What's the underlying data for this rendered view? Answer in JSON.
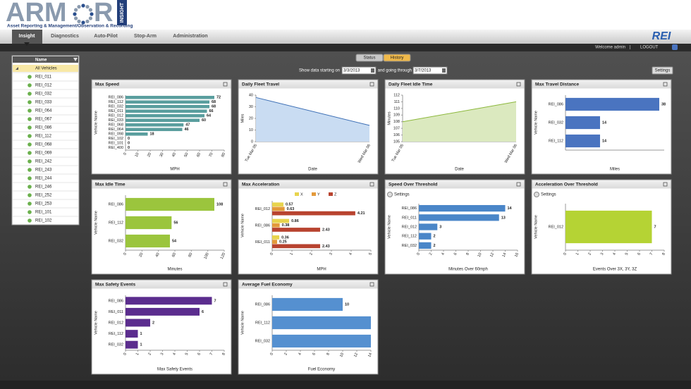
{
  "header": {
    "logo_left": "ARM",
    "logo_right": "R",
    "logo_tag": "INSIGHT",
    "tagline": "Asset Reporting & Management/Observation & Recording"
  },
  "nav": {
    "tabs": [
      "Insight",
      "Diagnostics",
      "Auto-Pilot",
      "Stop-Arm",
      "Administration"
    ],
    "brand": "REI"
  },
  "user_bar": {
    "welcome": "Welcome admin",
    "separator": "|",
    "logout": "LOGOUT"
  },
  "sidebar": {
    "header": "Name",
    "items": [
      "All Vehicles",
      "REI_011",
      "REI_012",
      "REI_032",
      "REI_033",
      "REI_064",
      "REI_067",
      "REI_086",
      "REI_112",
      "REI_068",
      "REI_069",
      "REI_242",
      "REI_243",
      "REI_244",
      "REI_246",
      "REI_252",
      "REI_253",
      "REI_101",
      "REI_102"
    ]
  },
  "view_tabs": [
    "Status",
    "History"
  ],
  "filter": {
    "start_label": "Show data starting on",
    "start": "3/3/2013",
    "end_label": "and going through",
    "end": "3/7/2013",
    "settings": "Settings"
  },
  "chart_data": [
    {
      "type": "barh",
      "title": "Max Speed",
      "categories": [
        "REI_086",
        "REI_112",
        "REI_032",
        "REI_011",
        "REI_012",
        "REI_033",
        "REI_068",
        "REI_064",
        "REI_098",
        "REI_102",
        "REI_101",
        "REI_400"
      ],
      "values": [
        72,
        68,
        68,
        66,
        64,
        60,
        47,
        46,
        18,
        0,
        0,
        0
      ],
      "color": "#5a9e9e",
      "xlim": [
        0,
        80
      ],
      "xticks": [
        0,
        10,
        20,
        30,
        40,
        50,
        60,
        70,
        80
      ],
      "x_label": "MPH",
      "y_label": "Vehicle Name"
    },
    {
      "type": "area",
      "title": "Daily Fleet Travel",
      "x": [
        "Tue Mar 05",
        "Wed Mar 06"
      ],
      "values": [
        38,
        14
      ],
      "color": "#3d6fb5",
      "fill_color": "#c9dcf2",
      "ylim": [
        0,
        40
      ],
      "yticks": [
        0,
        10,
        20,
        30,
        40
      ],
      "x_label": "Date",
      "y_label": "Miles"
    },
    {
      "type": "area",
      "title": "Daily Fleet Idle Time",
      "x": [
        "Tue Mar 05",
        "Wed Mar 06"
      ],
      "values": [
        108,
        111
      ],
      "color": "#8cb83c",
      "fill_color": "#dbe9bf",
      "ylim": [
        105,
        112
      ],
      "yticks": [
        105,
        106,
        107,
        108,
        109,
        110,
        111,
        112
      ],
      "x_label": "Date",
      "y_label": "Minutes"
    },
    {
      "type": "barh",
      "title": "Max Travel Distance",
      "categories": [
        "REI_086",
        "REI_032",
        "REI_112"
      ],
      "values": [
        38,
        14,
        14
      ],
      "color": "#4a74c0",
      "xlim": [
        0,
        40
      ],
      "x_label": "Miles",
      "y_label": "Vehicle Name"
    },
    {
      "type": "barh",
      "title": "Max Idle Time",
      "categories": [
        "REI_086",
        "REI_112",
        "REI_032"
      ],
      "values": [
        108,
        56,
        54
      ],
      "color": "#9bc53d",
      "xlim": [
        0,
        120
      ],
      "xticks": [
        0,
        20,
        40,
        60,
        80,
        100,
        120
      ],
      "x_label": "Minutes",
      "y_label": "Vehicle Name"
    },
    {
      "type": "barh",
      "title": "Max Acceleration",
      "categories": [
        "REI_012",
        "REI_086",
        "REI_011"
      ],
      "series": [
        {
          "name": "X",
          "color": "#e8d44d",
          "values": [
            0.57,
            0.86,
            0.36
          ]
        },
        {
          "name": "Y",
          "color": "#e39a3b",
          "values": [
            0.63,
            0.38,
            0.25
          ]
        },
        {
          "name": "Z",
          "color": "#b8432f",
          "values": [
            4.21,
            2.43,
            2.43
          ]
        }
      ],
      "xlim": [
        0,
        5
      ],
      "xticks": [
        0,
        1,
        2,
        3,
        4,
        5
      ],
      "x_label": "MPH",
      "y_label": "Vehicle Name"
    },
    {
      "type": "barh",
      "title": "Speed Over Threshold",
      "settings": "Settings",
      "categories": [
        "REI_086",
        "REI_011",
        "REI_012",
        "REI_112",
        "REI_032"
      ],
      "values": [
        14,
        13,
        3,
        2,
        2
      ],
      "color": "#4a86c8",
      "xlim": [
        0,
        16
      ],
      "xticks": [
        0,
        2,
        4,
        6,
        8,
        10,
        12,
        14,
        16
      ],
      "x_label": "Minutes Over 60mph",
      "y_label": "Vehicle Name"
    },
    {
      "type": "barh",
      "title": "Acceleration Over Threshold",
      "settings": "Settings",
      "categories": [
        "REI_012"
      ],
      "values": [
        7
      ],
      "color": "#b5d334",
      "xlim": [
        0,
        8
      ],
      "xticks": [
        0,
        1,
        2,
        3,
        4,
        5,
        6,
        7,
        8
      ],
      "x_label": "Events Over 3X, 3Y, 3Z",
      "y_label": "Vehicle Name"
    },
    {
      "type": "barh",
      "title": "Max Safety Events",
      "categories": [
        "REI_086",
        "REI_011",
        "REI_012",
        "REI_112",
        "REI_032"
      ],
      "values": [
        7,
        6,
        2,
        1,
        1
      ],
      "color": "#5b2d8e",
      "xlim": [
        0,
        8
      ],
      "xticks": [
        0,
        1,
        2,
        3,
        4,
        5,
        6,
        7,
        8
      ],
      "x_label": "Max Safety Events",
      "y_label": "Vehicle Name"
    },
    {
      "type": "barh",
      "title": "Average Fuel Economy",
      "categories": [
        "REI_086",
        "REI_112",
        "REI_032"
      ],
      "values": [
        10,
        14,
        14
      ],
      "value_labels": [
        "10",
        null,
        null
      ],
      "color": "#5590d0",
      "xlim": [
        0,
        14
      ],
      "xticks": [
        0,
        2,
        4,
        6,
        8,
        10,
        12,
        14
      ],
      "x_label": "Fuel Economy",
      "y_label": "Vehicle Name"
    }
  ]
}
